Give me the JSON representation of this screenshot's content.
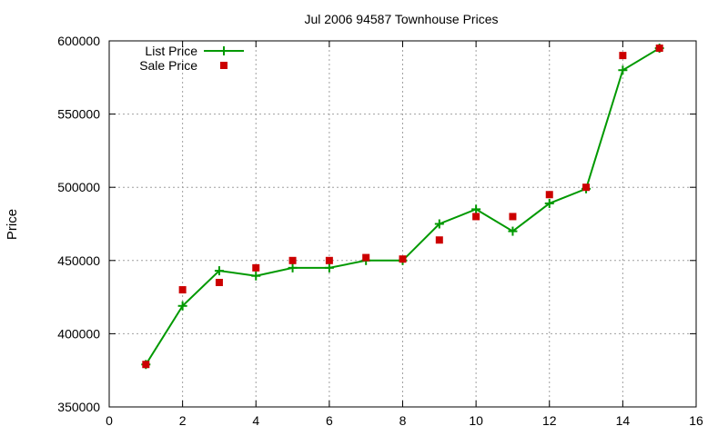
{
  "chart_data": {
    "type": "line",
    "title": "Jul 2006 94587 Townhouse Prices",
    "xlabel": "",
    "ylabel": "Price",
    "xlim": [
      0,
      16
    ],
    "ylim": [
      350000,
      600000
    ],
    "xticks": [
      0,
      2,
      4,
      6,
      8,
      10,
      12,
      14,
      16
    ],
    "yticks": [
      350000,
      400000,
      450000,
      500000,
      550000,
      600000
    ],
    "grid": true,
    "legend_position": "top-left",
    "series": [
      {
        "name": "List Price",
        "style": "linespoints",
        "marker": "plus",
        "color": "#009900",
        "x": [
          1,
          2,
          3,
          4,
          5,
          6,
          7,
          8,
          9,
          10,
          11,
          12,
          13,
          14,
          15
        ],
        "y": [
          379000,
          419000,
          443000,
          439500,
          445000,
          445000,
          450000,
          450000,
          475000,
          485000,
          470000,
          489000,
          499000,
          580000,
          595000
        ]
      },
      {
        "name": "Sale Price",
        "style": "points",
        "marker": "square",
        "color": "#cc0000",
        "x": [
          1,
          2,
          3,
          4,
          5,
          6,
          7,
          8,
          9,
          10,
          11,
          12,
          13,
          14,
          15
        ],
        "y": [
          379000,
          430000,
          435000,
          445000,
          450000,
          450000,
          452000,
          451000,
          464000,
          480000,
          480000,
          495000,
          500000,
          590000,
          595000
        ]
      }
    ]
  }
}
